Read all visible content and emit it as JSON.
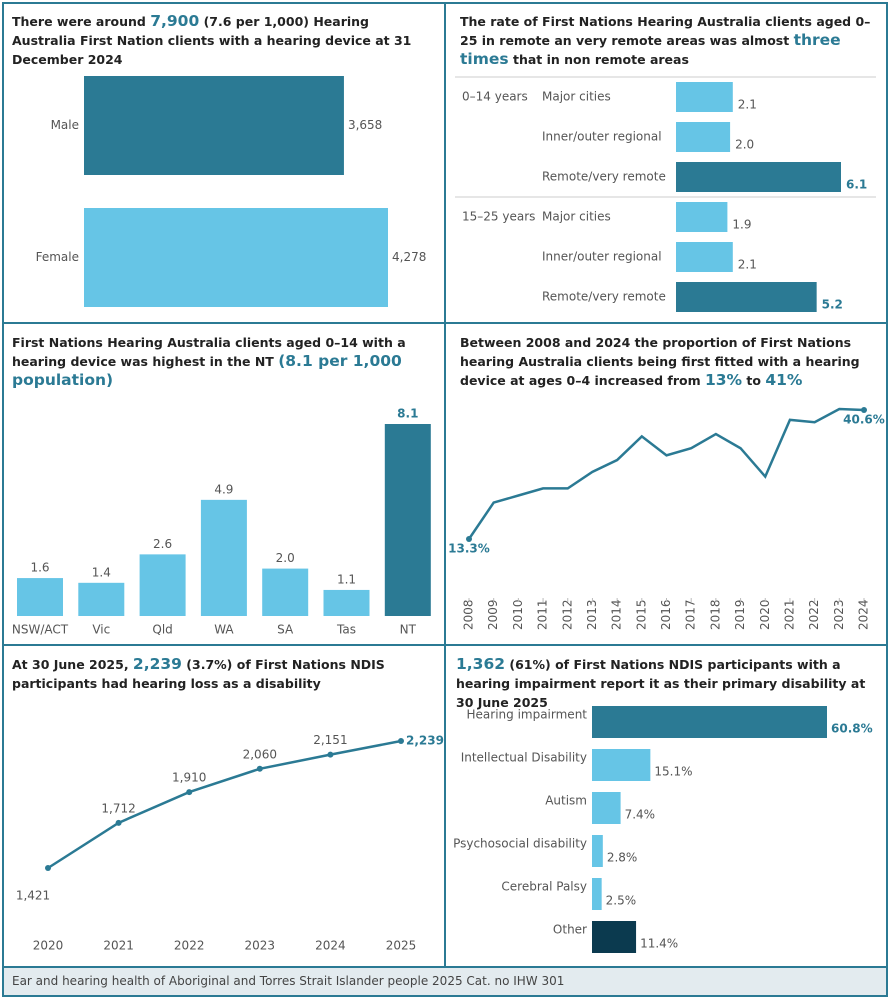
{
  "chart_data": [
    {
      "type": "hbar",
      "title": [
        "There were around ",
        "7,900",
        " (7.6 per 1,000) Hearing Australia First Nation clients with a hearing device at 31 December 2024"
      ],
      "title_highlight": [
        1
      ],
      "categories": [
        "Male",
        "Female"
      ],
      "values": [
        3658,
        4278
      ],
      "value_labels": [
        "3,658",
        "4,278"
      ],
      "colors": [
        "#2b7a94",
        "#66c5e6"
      ],
      "label_highlight": []
    },
    {
      "type": "grouped_hbar",
      "title": [
        "The rate of First Nations Hearing Australia clients aged 0–25 in remote an very remote areas was almost ",
        "three times",
        " that in non remote areas"
      ],
      "title_highlight": [
        1
      ],
      "categories": [
        "Major cities",
        "Inner/outer regional",
        "Remote/very remote"
      ],
      "colors": [
        "#66c5e6",
        "#66c5e6",
        "#2b7a94"
      ],
      "label_highlight": [
        2
      ],
      "groups": [
        {
          "name": "0–14 years",
          "values": [
            2.1,
            2.0,
            6.1
          ],
          "value_labels": [
            "2.1",
            "2.0",
            "6.1"
          ]
        },
        {
          "name": "15–25 years",
          "values": [
            1.9,
            2.1,
            5.2
          ],
          "value_labels": [
            "1.9",
            "2.1",
            "5.2"
          ]
        }
      ]
    },
    {
      "type": "bar",
      "title": [
        "First Nations Hearing Australia clients aged 0–14 with a hearing device was highest in the NT ",
        "(8.1 per 1,000 population)"
      ],
      "title_highlight": [
        1
      ],
      "categories": [
        "NSW/ACT",
        "Vic",
        "Qld",
        "WA",
        "SA",
        "Tas",
        "NT"
      ],
      "values": [
        1.6,
        1.4,
        2.6,
        4.9,
        2.0,
        1.1,
        8.1
      ],
      "value_labels": [
        "1.6",
        "1.4",
        "2.6",
        "4.9",
        "2.0",
        "1.1",
        "8.1"
      ],
      "colors": [
        "#66c5e6",
        "#66c5e6",
        "#66c5e6",
        "#66c5e6",
        "#66c5e6",
        "#66c5e6",
        "#2b7a94"
      ],
      "label_highlight": [
        6
      ]
    },
    {
      "type": "line",
      "title": [
        "Between 2008 and 2024 the proportion of First Nations hearing Australia clients being first fitted with a hearing device at ages 0–4 increased from ",
        "13%",
        " to ",
        "41%"
      ],
      "title_highlight": [
        1,
        3
      ],
      "x": [
        2008,
        2009,
        2010,
        2011,
        2012,
        2013,
        2014,
        2015,
        2016,
        2017,
        2018,
        2019,
        2020,
        2021,
        2022,
        2023,
        2024
      ],
      "xticks": [
        2008,
        2009,
        2010,
        2011,
        2012,
        2013,
        2014,
        2015,
        2016,
        2017,
        2018,
        2019,
        2020,
        2021,
        2022,
        2023,
        2024
      ],
      "values": [
        13.3,
        21,
        22.5,
        24,
        24,
        27.5,
        30,
        35,
        31,
        32.5,
        35.5,
        32.5,
        26.5,
        38.5,
        38,
        40.8,
        40.6
      ],
      "value_labels": [
        "13.3%",
        null,
        null,
        null,
        null,
        null,
        null,
        null,
        null,
        null,
        null,
        null,
        null,
        null,
        null,
        null,
        "40.6%"
      ],
      "color": "#2b7a94",
      "markers": "ends",
      "label_highlight": [
        0,
        16
      ]
    },
    {
      "type": "line",
      "title": [
        "At 30 June 2025, ",
        "2,239",
        " (3.7%) of First Nations NDIS participants had hearing loss as a disability"
      ],
      "title_highlight": [
        1
      ],
      "x": [
        2020,
        2021,
        2022,
        2023,
        2024,
        2025
      ],
      "xticks": [
        2020,
        2021,
        2022,
        2023,
        2024,
        2025
      ],
      "values": [
        1421,
        1712,
        1910,
        2060,
        2151,
        2239
      ],
      "value_labels": [
        "1,421",
        "1,712",
        "1,910",
        "2,060",
        "2,151",
        "2,239"
      ],
      "color": "#2b7a94",
      "markers": "all",
      "label_highlight": [
        5
      ]
    },
    {
      "type": "hbar",
      "title": [
        "1,362",
        " (61%) of First Nations NDIS participants with a hearing impairment report it as their primary disability at 30 June 2025"
      ],
      "title_highlight": [
        0
      ],
      "categories": [
        "Hearing impairment",
        "Intellectual Disability",
        "Autism",
        "Psychosocial disability",
        "Cerebral Palsy",
        "Other"
      ],
      "values": [
        60.8,
        15.1,
        7.4,
        2.8,
        2.5,
        11.4
      ],
      "value_labels": [
        "60.8%",
        "15.1%",
        "7.4%",
        "2.8%",
        "2.5%",
        "11.4%"
      ],
      "colors": [
        "#2b7a94",
        "#66c5e6",
        "#66c5e6",
        "#66c5e6",
        "#66c5e6",
        "#0b3a4f"
      ],
      "label_highlight": [
        0
      ]
    }
  ],
  "footer": "Ear and hearing health of Aboriginal and Torres Strait Islander people 2025 Cat. no IHW 301"
}
